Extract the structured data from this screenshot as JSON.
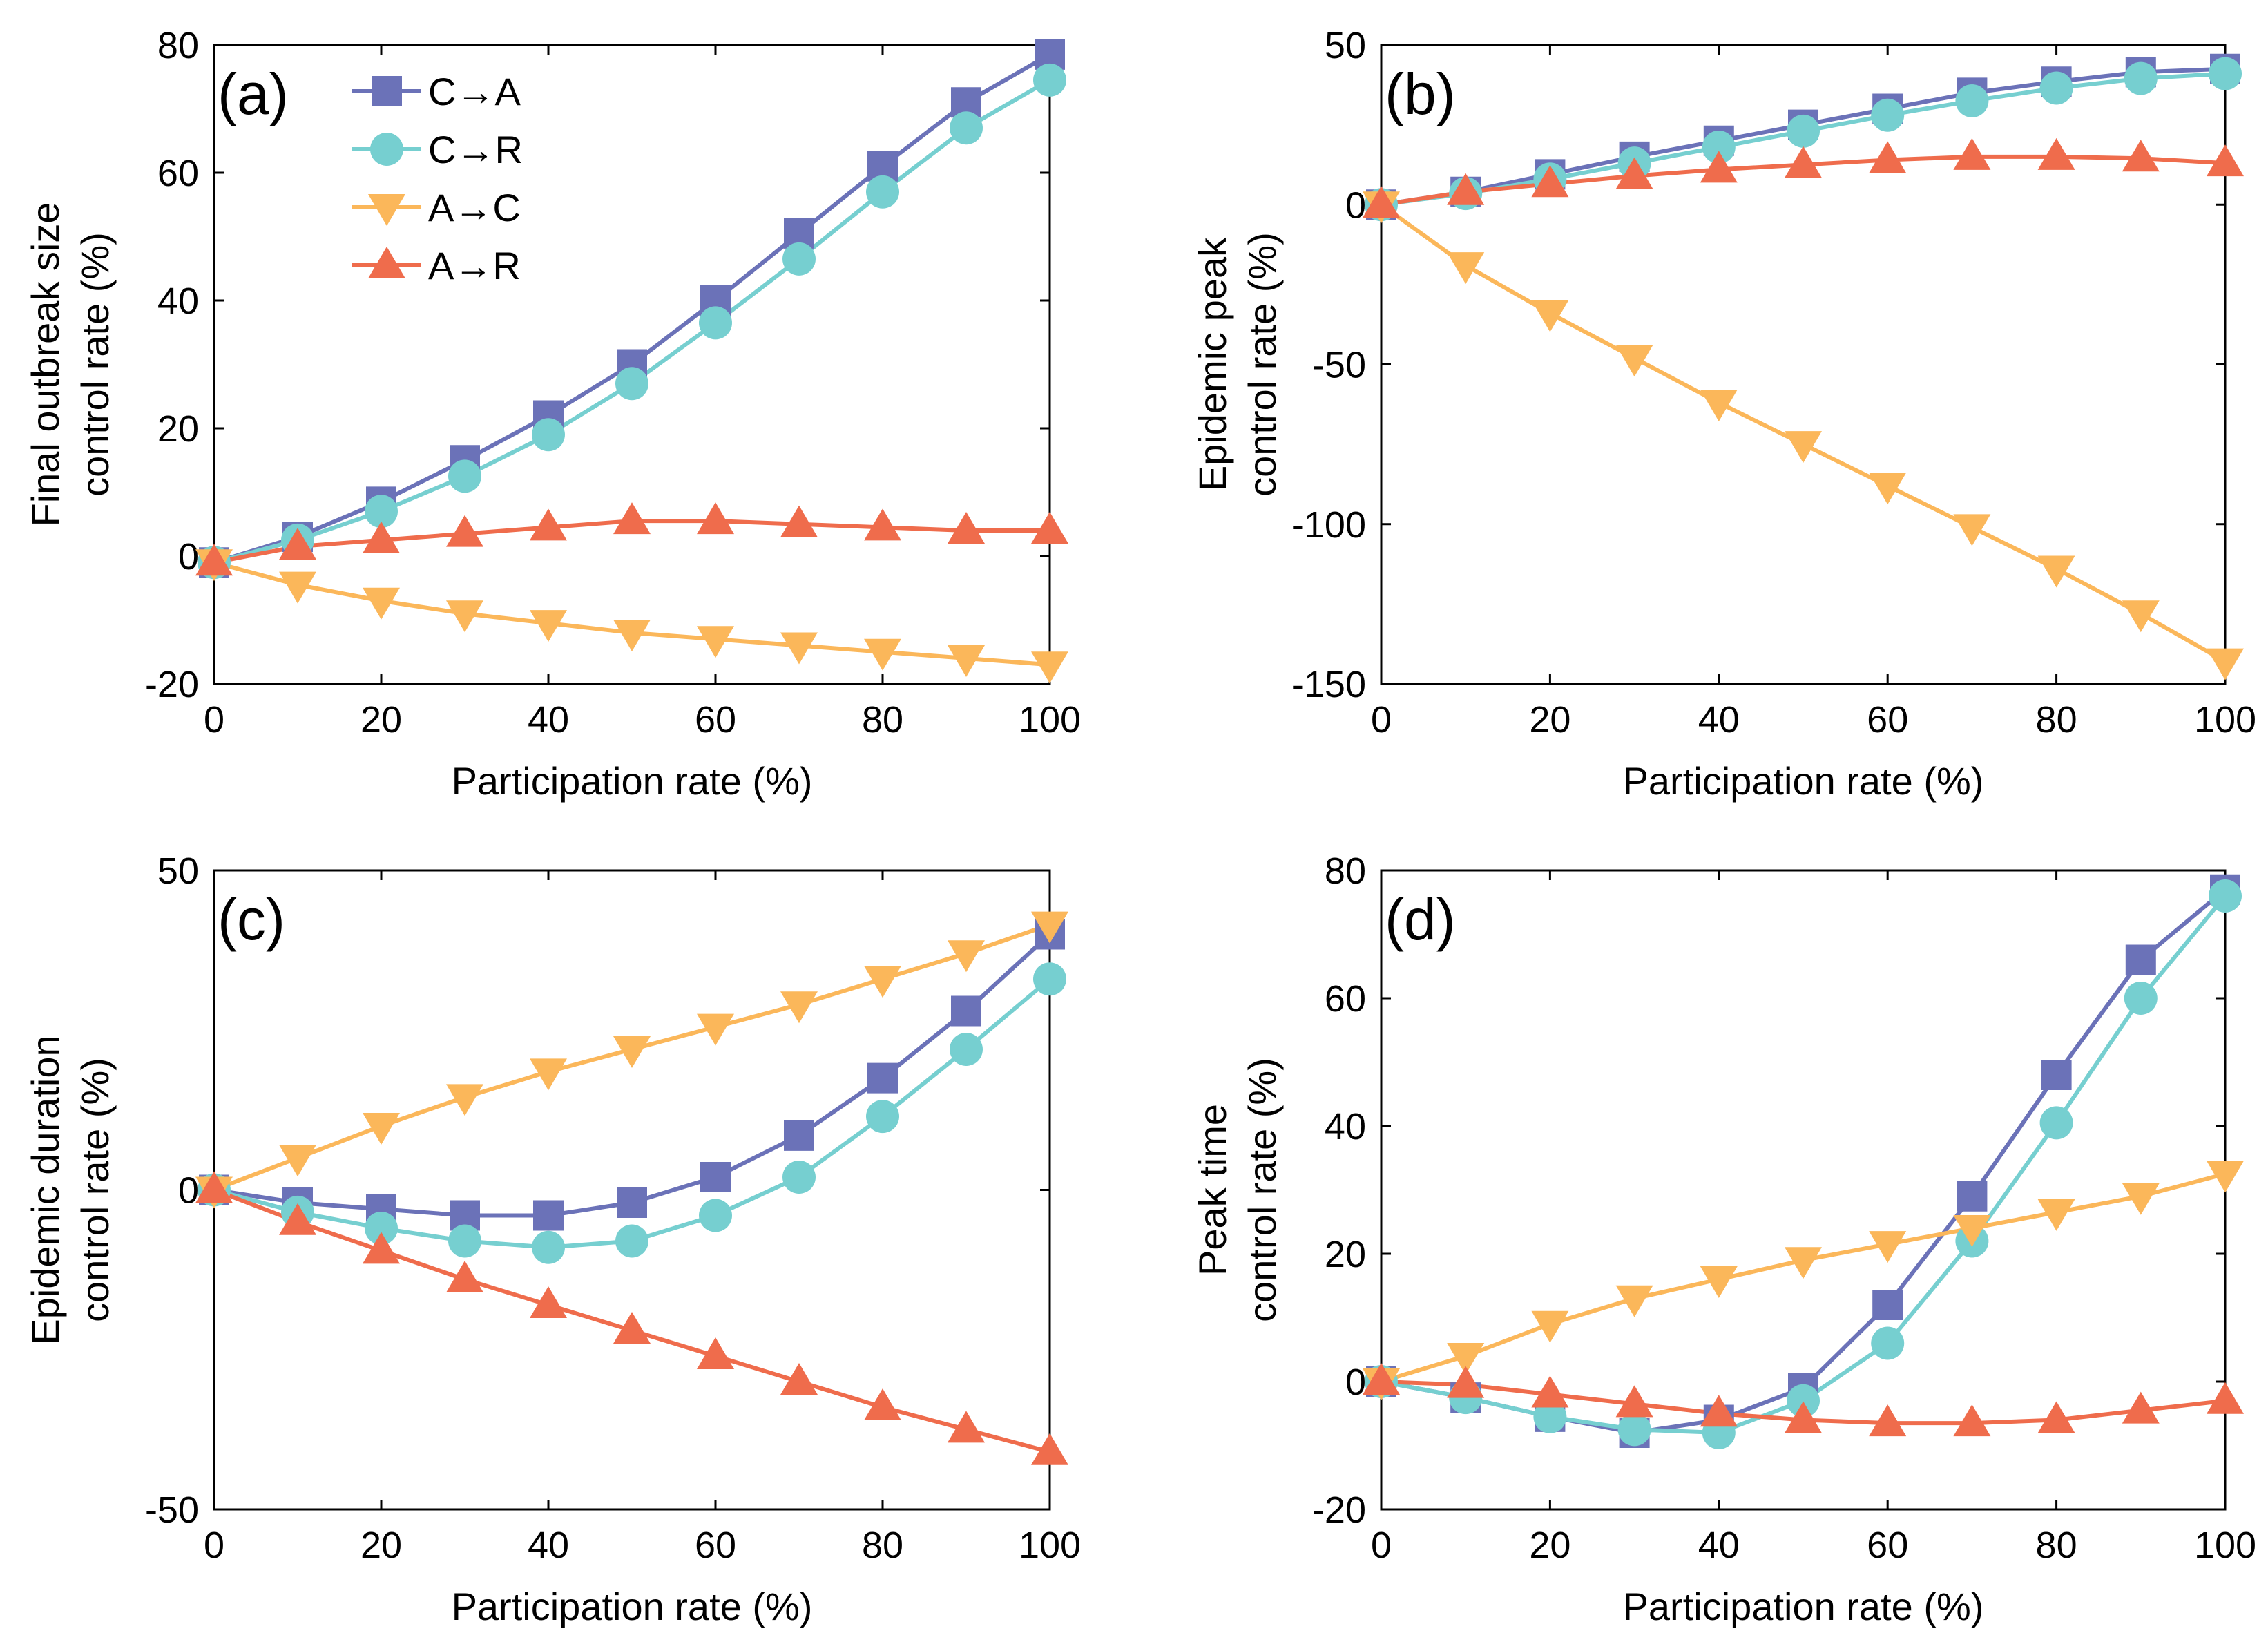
{
  "colors": {
    "C_to_A": "#6b72b8",
    "C_to_R": "#76cfd0",
    "A_to_C": "#fbb75a",
    "A_to_R": "#ef6c4c"
  },
  "legend": [
    {
      "key": "C_to_A",
      "label": "C→A",
      "marker": "square"
    },
    {
      "key": "C_to_R",
      "label": "C→R",
      "marker": "circle"
    },
    {
      "key": "A_to_C",
      "label": "A→C",
      "marker": "triangle-down"
    },
    {
      "key": "A_to_R",
      "label": "A→R",
      "marker": "triangle-up"
    }
  ],
  "chart_data": [
    {
      "panel": "(a)",
      "type": "line",
      "xlabel": "Participation rate (%)",
      "ylabel": [
        "Final outbreak size",
        "control rate (%)"
      ],
      "xlim": [
        0,
        100
      ],
      "ylim": [
        -20,
        80
      ],
      "xticks": [
        0,
        20,
        40,
        60,
        80,
        100
      ],
      "yticks": [
        -20,
        0,
        20,
        40,
        60,
        80
      ],
      "x": [
        0,
        10,
        20,
        30,
        40,
        50,
        60,
        70,
        80,
        90,
        100
      ],
      "legend_position": "top-left",
      "series": [
        {
          "key": "C_to_A",
          "name": "C→A",
          "values": [
            -1,
            3,
            8.5,
            15,
            22,
            30,
            40,
            50.5,
            61,
            71,
            78.5
          ]
        },
        {
          "key": "C_to_R",
          "name": "C→R",
          "values": [
            -1,
            2.5,
            7,
            12.5,
            19,
            27,
            36.5,
            46.5,
            57,
            67,
            74.5
          ]
        },
        {
          "key": "A_to_C",
          "name": "A→C",
          "values": [
            -1,
            -4.5,
            -7,
            -9,
            -10.5,
            -12,
            -13,
            -14,
            -15,
            -16,
            -17
          ]
        },
        {
          "key": "A_to_R",
          "name": "A→R",
          "values": [
            -1,
            1.5,
            2.5,
            3.5,
            4.5,
            5.5,
            5.5,
            5,
            4.5,
            4,
            4
          ]
        }
      ]
    },
    {
      "panel": "(b)",
      "type": "line",
      "xlabel": "Participation rate (%)",
      "ylabel": [
        "Epidemic peak",
        "control rate (%)"
      ],
      "xlim": [
        0,
        100
      ],
      "ylim": [
        -150,
        50
      ],
      "xticks": [
        0,
        20,
        40,
        60,
        80,
        100
      ],
      "yticks": [
        -150,
        -100,
        -50,
        0,
        50
      ],
      "x": [
        0,
        10,
        20,
        30,
        40,
        50,
        60,
        70,
        80,
        90,
        100
      ],
      "series": [
        {
          "key": "C_to_A",
          "name": "C→A",
          "values": [
            0,
            4,
            9.5,
            15,
            20,
            25,
            30,
            35,
            38.5,
            41.5,
            42.5
          ]
        },
        {
          "key": "C_to_R",
          "name": "C→R",
          "values": [
            0,
            3.5,
            8,
            13,
            18,
            23,
            28,
            32.5,
            36.5,
            39.5,
            41
          ]
        },
        {
          "key": "A_to_C",
          "name": "A→C",
          "values": [
            0,
            -19,
            -34,
            -48,
            -62,
            -75,
            -88,
            -101,
            -114,
            -128,
            -143
          ]
        },
        {
          "key": "A_to_R",
          "name": "A→R",
          "values": [
            0,
            4,
            6.5,
            9,
            11,
            12.5,
            14,
            15,
            15,
            14.5,
            13
          ]
        }
      ]
    },
    {
      "panel": "(c)",
      "type": "line",
      "xlabel": "Participation rate (%)",
      "ylabel": [
        "Epidemic duration",
        "control rate (%)"
      ],
      "xlim": [
        0,
        100
      ],
      "ylim": [
        -50,
        50
      ],
      "xticks": [
        0,
        20,
        40,
        60,
        80,
        100
      ],
      "yticks": [
        -50,
        0,
        50
      ],
      "x": [
        0,
        10,
        20,
        30,
        40,
        50,
        60,
        70,
        80,
        90,
        100
      ],
      "series": [
        {
          "key": "C_to_A",
          "name": "C→A",
          "values": [
            0,
            -2,
            -3,
            -4,
            -4,
            -2,
            2,
            8.5,
            17.5,
            28,
            40
          ]
        },
        {
          "key": "C_to_R",
          "name": "C→R",
          "values": [
            0,
            -3.5,
            -6,
            -8,
            -9,
            -8,
            -4,
            2,
            11.5,
            22,
            33
          ]
        },
        {
          "key": "A_to_C",
          "name": "A→C",
          "values": [
            0,
            5,
            10,
            14.5,
            18.5,
            22,
            25.5,
            29,
            33,
            37,
            41.5
          ]
        },
        {
          "key": "A_to_R",
          "name": "A→R",
          "values": [
            0,
            -5,
            -9.5,
            -14,
            -18,
            -22,
            -26,
            -30,
            -34,
            -37.5,
            -41
          ]
        }
      ]
    },
    {
      "panel": "(d)",
      "type": "line",
      "xlabel": "Participation rate (%)",
      "ylabel": [
        "Peak time",
        "control rate (%)"
      ],
      "xlim": [
        0,
        100
      ],
      "ylim": [
        -20,
        80
      ],
      "xticks": [
        0,
        20,
        40,
        60,
        80,
        100
      ],
      "yticks": [
        -20,
        0,
        20,
        40,
        60,
        80
      ],
      "x": [
        0,
        10,
        20,
        30,
        40,
        50,
        60,
        70,
        80,
        90,
        100
      ],
      "series": [
        {
          "key": "C_to_A",
          "name": "C→A",
          "values": [
            0,
            -2.5,
            -5.5,
            -8,
            -6,
            -1,
            12,
            29,
            48,
            66,
            77
          ]
        },
        {
          "key": "C_to_R",
          "name": "C→R",
          "values": [
            0,
            -2.5,
            -5.5,
            -7.5,
            -8,
            -3,
            6,
            22,
            40.5,
            60,
            76
          ]
        },
        {
          "key": "A_to_C",
          "name": "A→C",
          "values": [
            0,
            4,
            9,
            13,
            16,
            19,
            21.5,
            24,
            26.5,
            29,
            32.5
          ]
        },
        {
          "key": "A_to_R",
          "name": "A→R",
          "values": [
            0,
            -0.5,
            -2,
            -3.5,
            -5,
            -6,
            -6.5,
            -6.5,
            -6,
            -4.5,
            -3
          ]
        }
      ]
    }
  ]
}
